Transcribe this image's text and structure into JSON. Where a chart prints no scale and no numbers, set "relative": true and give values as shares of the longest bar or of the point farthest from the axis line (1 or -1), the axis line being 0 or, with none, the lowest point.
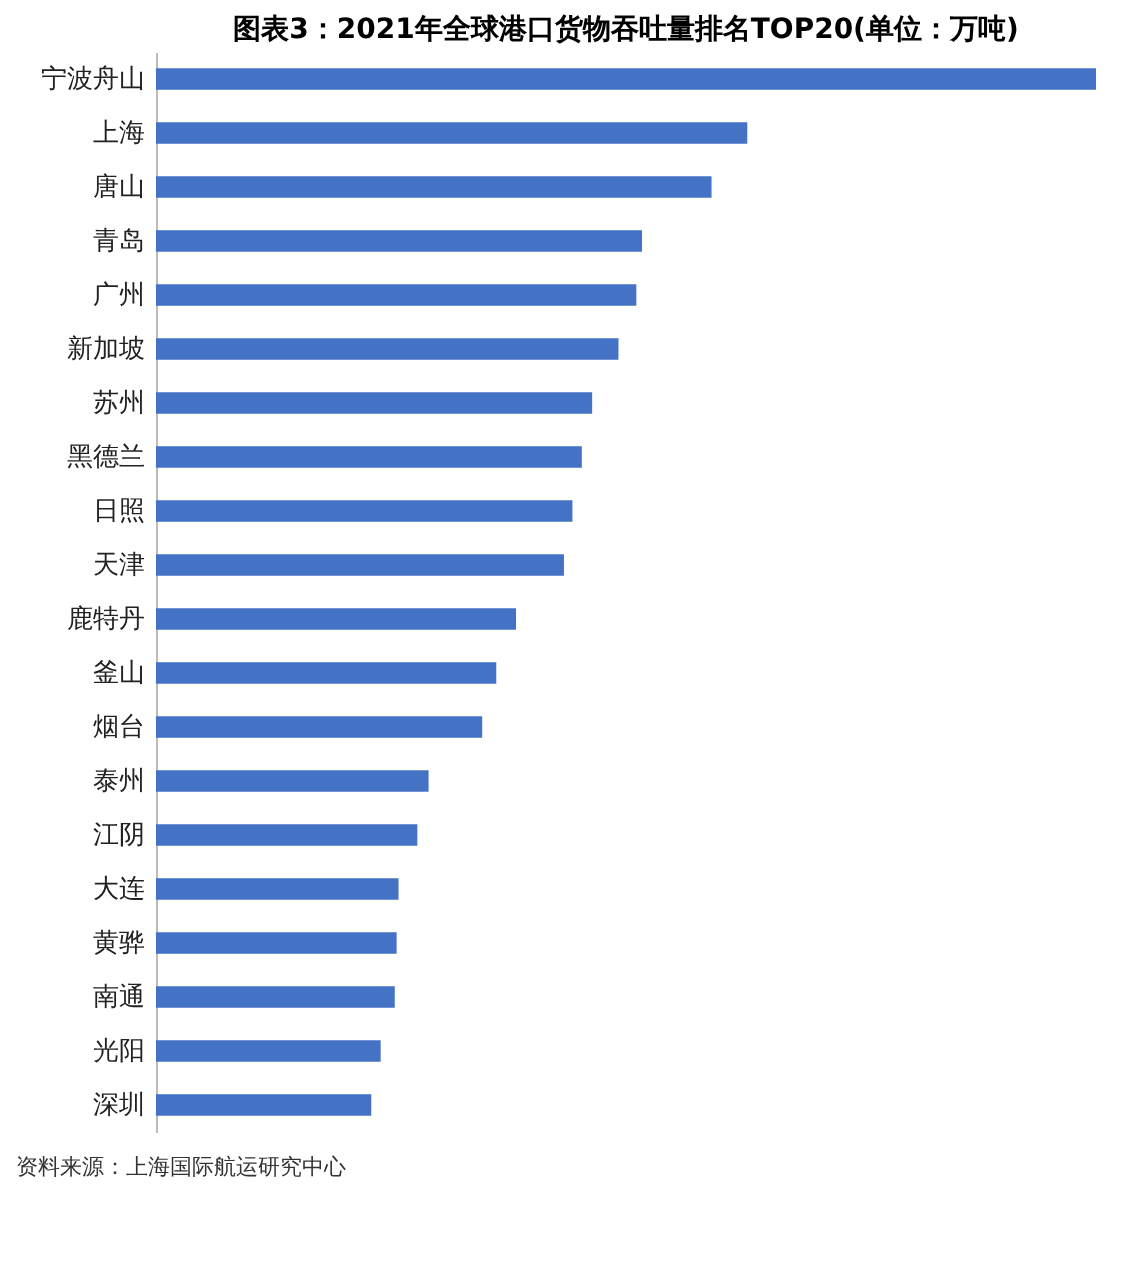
{
  "chart_data": {
    "type": "bar",
    "orientation": "horizontal",
    "relative": true,
    "title": "图表3：2021年全球港口货物吞吐量排名TOP20(单位：万吨)",
    "categories": [
      "宁波舟山",
      "上海",
      "唐山",
      "青岛",
      "广州",
      "新加坡",
      "苏州",
      "黑德兰",
      "日照",
      "天津",
      "鹿特丹",
      "釜山",
      "烟台",
      "泰州",
      "江阴",
      "大连",
      "黄骅",
      "南通",
      "光阳",
      "深圳"
    ],
    "values": [
      1,
      0.629,
      0.591,
      0.517,
      0.511,
      0.492,
      0.464,
      0.453,
      0.443,
      0.434,
      0.383,
      0.362,
      0.347,
      0.29,
      0.278,
      0.258,
      0.256,
      0.254,
      0.239,
      0.229
    ],
    "color": "#4472c4",
    "grid": false,
    "annotations": [
      "资料来源：上海国际航运研究中心"
    ]
  }
}
